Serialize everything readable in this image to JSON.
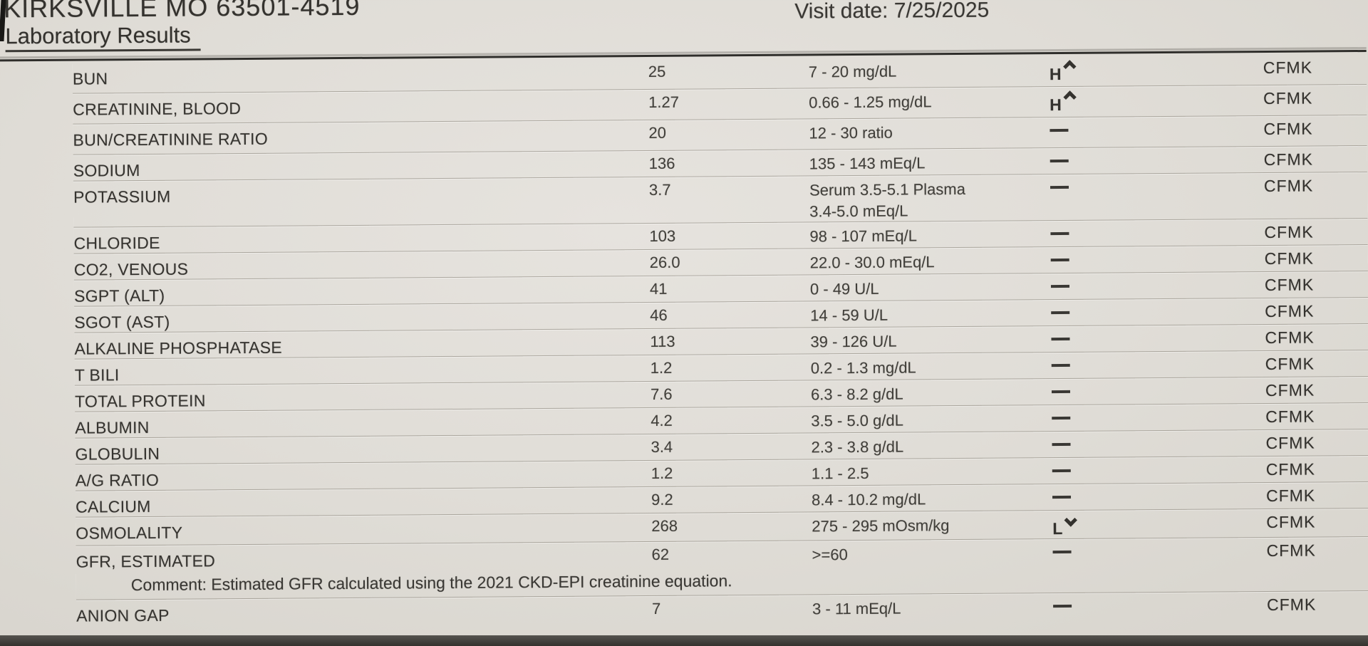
{
  "header": {
    "address_line": "KIRKSVILLE MO 63501-4519",
    "visit_date": "Visit date: 7/25/2025",
    "section_title": "Laboratory Results"
  },
  "colors": {
    "paper": "#e2dfd9",
    "ink": "#363430",
    "rule": "#2f2e2b"
  },
  "table": {
    "rows": [
      {
        "test": "BUN",
        "result": "25",
        "range": "7 - 20 mg/dL",
        "range2": "",
        "flag_label": "H",
        "flag_icon": "caret-up-icon",
        "location": "CFMK",
        "comment": ""
      },
      {
        "test": "CREATININE, BLOOD",
        "result": "1.27",
        "range": "0.66 - 1.25 mg/dL",
        "range2": "",
        "flag_label": "H",
        "flag_icon": "caret-up-icon",
        "location": "CFMK",
        "comment": ""
      },
      {
        "test": "BUN/CREATININE RATIO",
        "result": "20",
        "range": "12 - 30 ratio",
        "range2": "",
        "flag_label": "",
        "flag_icon": "dash-icon",
        "location": "CFMK",
        "comment": ""
      },
      {
        "test": "SODIUM",
        "result": "136",
        "range": "135 - 143 mEq/L",
        "range2": "",
        "flag_label": "",
        "flag_icon": "dash-icon",
        "location": "CFMK",
        "comment": ""
      },
      {
        "test": "POTASSIUM",
        "result": "3.7",
        "range": "Serum 3.5-5.1  Plasma",
        "range2": "3.4-5.0 mEq/L",
        "flag_label": "",
        "flag_icon": "dash-icon",
        "location": "CFMK",
        "comment": ""
      },
      {
        "test": "CHLORIDE",
        "result": "103",
        "range": "98 - 107 mEq/L",
        "range2": "",
        "flag_label": "",
        "flag_icon": "dash-icon",
        "location": "CFMK",
        "comment": ""
      },
      {
        "test": "CO2, VENOUS",
        "result": "26.0",
        "range": "22.0 - 30.0 mEq/L",
        "range2": "",
        "flag_label": "",
        "flag_icon": "dash-icon",
        "location": "CFMK",
        "comment": ""
      },
      {
        "test": "SGPT (ALT)",
        "result": "41",
        "range": "0 - 49 U/L",
        "range2": "",
        "flag_label": "",
        "flag_icon": "dash-icon",
        "location": "CFMK",
        "comment": ""
      },
      {
        "test": "SGOT (AST)",
        "result": "46",
        "range": "14 - 59 U/L",
        "range2": "",
        "flag_label": "",
        "flag_icon": "dash-icon",
        "location": "CFMK",
        "comment": ""
      },
      {
        "test": "ALKALINE PHOSPHATASE",
        "result": "113",
        "range": "39 - 126 U/L",
        "range2": "",
        "flag_label": "",
        "flag_icon": "dash-icon",
        "location": "CFMK",
        "comment": ""
      },
      {
        "test": "T BILI",
        "result": "1.2",
        "range": "0.2 - 1.3 mg/dL",
        "range2": "",
        "flag_label": "",
        "flag_icon": "dash-icon",
        "location": "CFMK",
        "comment": ""
      },
      {
        "test": "TOTAL PROTEIN",
        "result": "7.6",
        "range": "6.3 - 8.2 g/dL",
        "range2": "",
        "flag_label": "",
        "flag_icon": "dash-icon",
        "location": "CFMK",
        "comment": ""
      },
      {
        "test": "ALBUMIN",
        "result": "4.2",
        "range": "3.5 - 5.0 g/dL",
        "range2": "",
        "flag_label": "",
        "flag_icon": "dash-icon",
        "location": "CFMK",
        "comment": ""
      },
      {
        "test": "GLOBULIN",
        "result": "3.4",
        "range": "2.3 - 3.8 g/dL",
        "range2": "",
        "flag_label": "",
        "flag_icon": "dash-icon",
        "location": "CFMK",
        "comment": ""
      },
      {
        "test": "A/G RATIO",
        "result": "1.2",
        "range": "1.1 - 2.5",
        "range2": "",
        "flag_label": "",
        "flag_icon": "dash-icon",
        "location": "CFMK",
        "comment": ""
      },
      {
        "test": "CALCIUM",
        "result": "9.2",
        "range": "8.4 - 10.2 mg/dL",
        "range2": "",
        "flag_label": "",
        "flag_icon": "dash-icon",
        "location": "CFMK",
        "comment": ""
      },
      {
        "test": "OSMOLALITY",
        "result": "268",
        "range": "275 - 295 mOsm/kg",
        "range2": "",
        "flag_label": "L",
        "flag_icon": "caret-down-icon",
        "location": "CFMK",
        "comment": ""
      },
      {
        "test": "GFR, ESTIMATED",
        "result": "62",
        "range": ">=60",
        "range2": "",
        "flag_label": "",
        "flag_icon": "dash-icon",
        "location": "CFMK",
        "comment": "Comment: Estimated GFR calculated using the 2021 CKD-EPI creatinine equation."
      },
      {
        "test": "ANION GAP",
        "result": "7",
        "range": "3 - 11 mEq/L",
        "range2": "",
        "flag_label": "",
        "flag_icon": "dash-icon",
        "location": "CFMK",
        "comment": ""
      }
    ]
  }
}
